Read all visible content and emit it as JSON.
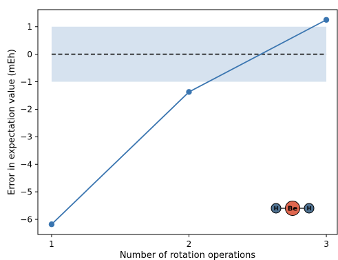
{
  "chart_data": {
    "type": "line",
    "title": "",
    "xlabel": "Number of rotation operations",
    "ylabel": "Error in expectation value (mEh)",
    "x": [
      1,
      2,
      3
    ],
    "xlim": [
      0.9,
      3.08
    ],
    "ylim": [
      -6.55,
      1.62
    ],
    "xticks": [
      1,
      2,
      3
    ],
    "xtick_labels": [
      "1",
      "2",
      "3"
    ],
    "yticks": [
      1,
      0,
      -1,
      -2,
      -3,
      -4,
      -5,
      -6
    ],
    "ytick_labels": [
      "1",
      "0",
      "−1",
      "−2",
      "−3",
      "−4",
      "−5",
      "−6"
    ],
    "grid": false,
    "series": [
      {
        "values": [
          -6.18,
          -1.37,
          1.25
        ],
        "color": "#3a75b0",
        "marker": "circle"
      }
    ],
    "reference_line": {
      "y": 0,
      "style": "dashed",
      "color": "#222222"
    },
    "tolerance_band": {
      "y_min": -1,
      "y_max": 1,
      "x_min": 1,
      "x_max": 3,
      "color": "#d6e2ef"
    },
    "molecule_inset": {
      "position": "bottom-right",
      "atoms": [
        {
          "label": "H",
          "color": "#4f7190"
        },
        {
          "label": "Be",
          "color": "#e0674f"
        },
        {
          "label": "H",
          "color": "#4f7190"
        }
      ]
    }
  }
}
